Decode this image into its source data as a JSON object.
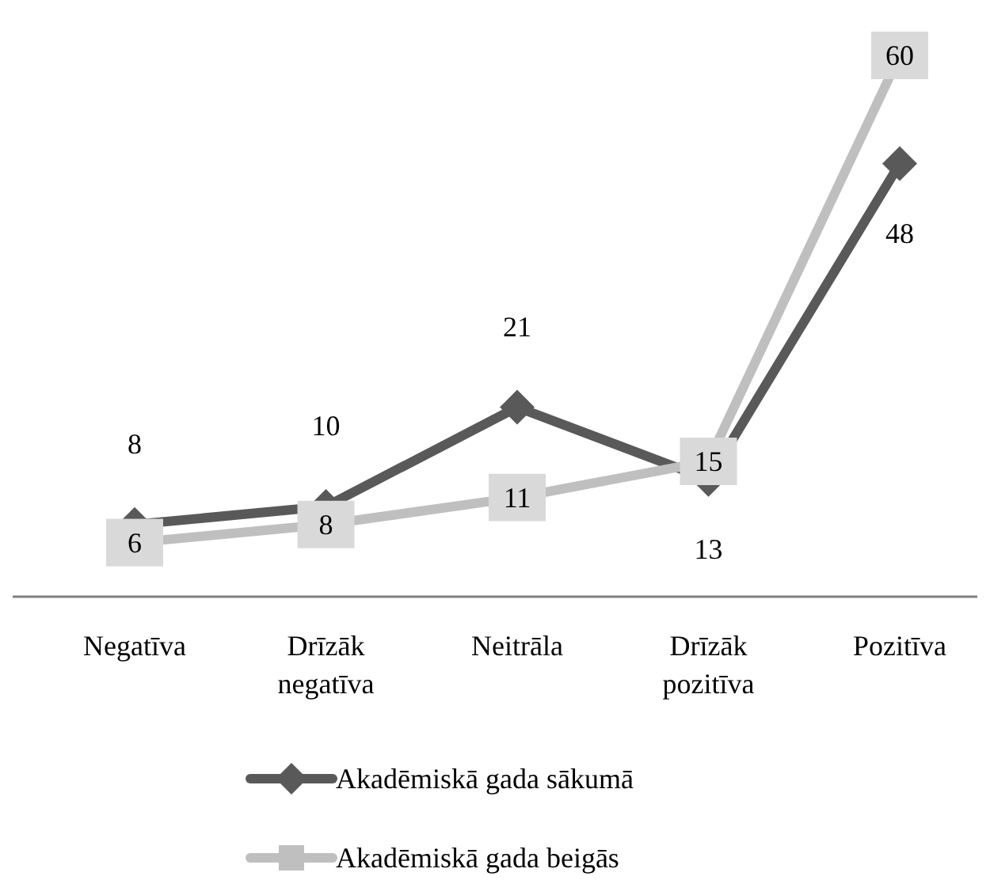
{
  "chart_data": {
    "type": "line",
    "categories": [
      "Negatīva",
      "Drīzāk negatīva",
      "Neitrāla",
      "Drīzāk pozitīva",
      "Pozitīva"
    ],
    "series": [
      {
        "name": "Akadēmiskā gada sākumā",
        "color": "#595959",
        "values": [
          8,
          10,
          21,
          13,
          48
        ],
        "marker": "diamond"
      },
      {
        "name": "Akadēmiskā gada beigās",
        "color": "#bfbfbf",
        "values": [
          6,
          8,
          11,
          15,
          60
        ],
        "marker": "square"
      }
    ],
    "data_labels": true,
    "legend": "bottom"
  }
}
